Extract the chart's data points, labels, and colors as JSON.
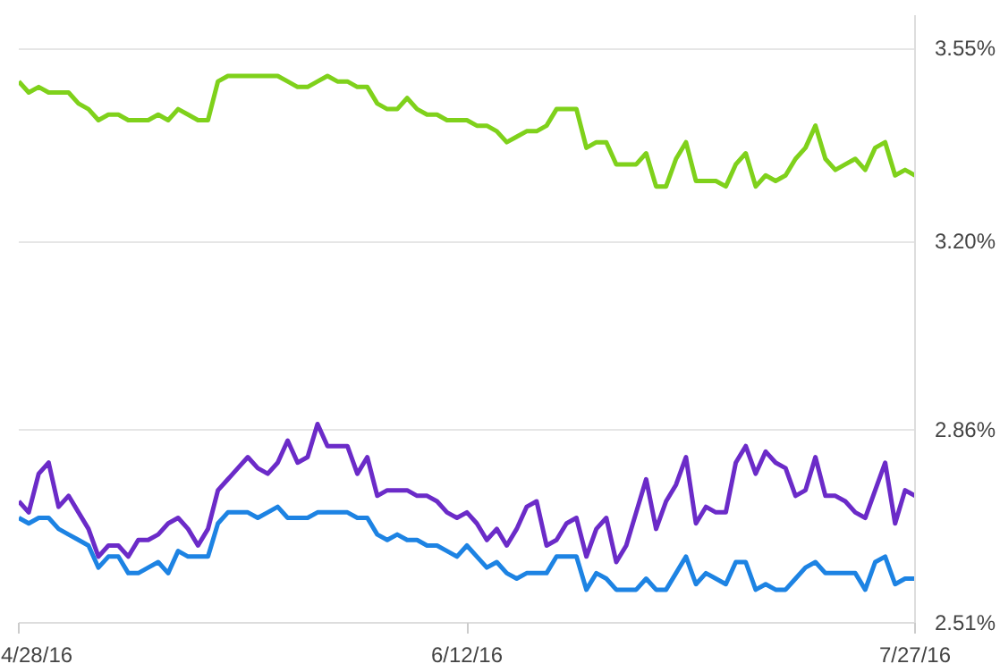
{
  "chart_data": {
    "type": "line",
    "x": [
      "2016-04-28",
      "2016-04-29",
      "2016-04-30",
      "2016-05-01",
      "2016-05-02",
      "2016-05-03",
      "2016-05-04",
      "2016-05-05",
      "2016-05-06",
      "2016-05-07",
      "2016-05-08",
      "2016-05-09",
      "2016-05-10",
      "2016-05-11",
      "2016-05-12",
      "2016-05-13",
      "2016-05-14",
      "2016-05-15",
      "2016-05-16",
      "2016-05-17",
      "2016-05-18",
      "2016-05-19",
      "2016-05-20",
      "2016-05-21",
      "2016-05-22",
      "2016-05-23",
      "2016-05-24",
      "2016-05-25",
      "2016-05-26",
      "2016-05-27",
      "2016-05-28",
      "2016-05-29",
      "2016-05-30",
      "2016-05-31",
      "2016-06-01",
      "2016-06-02",
      "2016-06-03",
      "2016-06-04",
      "2016-06-05",
      "2016-06-06",
      "2016-06-07",
      "2016-06-08",
      "2016-06-09",
      "2016-06-10",
      "2016-06-11",
      "2016-06-12",
      "2016-06-13",
      "2016-06-14",
      "2016-06-15",
      "2016-06-16",
      "2016-06-17",
      "2016-06-18",
      "2016-06-19",
      "2016-06-20",
      "2016-06-21",
      "2016-06-22",
      "2016-06-23",
      "2016-06-24",
      "2016-06-25",
      "2016-06-26",
      "2016-06-27",
      "2016-06-28",
      "2016-06-29",
      "2016-06-30",
      "2016-07-01",
      "2016-07-02",
      "2016-07-03",
      "2016-07-04",
      "2016-07-05",
      "2016-07-06",
      "2016-07-07",
      "2016-07-08",
      "2016-07-09",
      "2016-07-10",
      "2016-07-11",
      "2016-07-12",
      "2016-07-13",
      "2016-07-14",
      "2016-07-15",
      "2016-07-16",
      "2016-07-17",
      "2016-07-18",
      "2016-07-19",
      "2016-07-20",
      "2016-07-21",
      "2016-07-22",
      "2016-07-23",
      "2016-07-24",
      "2016-07-25",
      "2016-07-26",
      "2016-07-27"
    ],
    "series": [
      {
        "color": "#7fd11b",
        "values": [
          3.49,
          3.47,
          3.48,
          3.47,
          3.47,
          3.47,
          3.45,
          3.44,
          3.42,
          3.43,
          3.43,
          3.42,
          3.42,
          3.42,
          3.43,
          3.42,
          3.44,
          3.43,
          3.42,
          3.42,
          3.49,
          3.5,
          3.5,
          3.5,
          3.5,
          3.5,
          3.5,
          3.49,
          3.48,
          3.48,
          3.49,
          3.5,
          3.49,
          3.49,
          3.48,
          3.48,
          3.45,
          3.44,
          3.44,
          3.46,
          3.44,
          3.43,
          3.43,
          3.42,
          3.42,
          3.42,
          3.41,
          3.41,
          3.4,
          3.38,
          3.39,
          3.4,
          3.4,
          3.41,
          3.44,
          3.44,
          3.44,
          3.37,
          3.38,
          3.38,
          3.34,
          3.34,
          3.34,
          3.36,
          3.3,
          3.3,
          3.35,
          3.38,
          3.31,
          3.31,
          3.31,
          3.3,
          3.34,
          3.36,
          3.3,
          3.32,
          3.31,
          3.32,
          3.35,
          3.37,
          3.41,
          3.35,
          3.33,
          3.34,
          3.35,
          3.33,
          3.37,
          3.38,
          3.32,
          3.33,
          3.32
        ]
      },
      {
        "color": "#6b2bc8",
        "values": [
          2.73,
          2.71,
          2.78,
          2.8,
          2.72,
          2.74,
          2.71,
          2.68,
          2.63,
          2.65,
          2.65,
          2.63,
          2.66,
          2.66,
          2.67,
          2.69,
          2.7,
          2.68,
          2.65,
          2.68,
          2.75,
          2.77,
          2.79,
          2.81,
          2.79,
          2.78,
          2.8,
          2.84,
          2.8,
          2.81,
          2.87,
          2.83,
          2.83,
          2.83,
          2.78,
          2.81,
          2.74,
          2.75,
          2.75,
          2.75,
          2.74,
          2.74,
          2.73,
          2.71,
          2.7,
          2.71,
          2.69,
          2.66,
          2.68,
          2.65,
          2.68,
          2.72,
          2.73,
          2.65,
          2.66,
          2.69,
          2.7,
          2.63,
          2.68,
          2.7,
          2.62,
          2.65,
          2.71,
          2.77,
          2.68,
          2.73,
          2.76,
          2.81,
          2.69,
          2.72,
          2.71,
          2.71,
          2.8,
          2.83,
          2.78,
          2.82,
          2.8,
          2.79,
          2.74,
          2.75,
          2.81,
          2.74,
          2.74,
          2.73,
          2.71,
          2.7,
          2.75,
          2.8,
          2.69,
          2.75,
          2.74
        ]
      },
      {
        "color": "#1d83e3",
        "values": [
          2.7,
          2.69,
          2.7,
          2.7,
          2.68,
          2.67,
          2.66,
          2.65,
          2.61,
          2.63,
          2.63,
          2.6,
          2.6,
          2.61,
          2.62,
          2.6,
          2.64,
          2.63,
          2.63,
          2.63,
          2.69,
          2.71,
          2.71,
          2.71,
          2.7,
          2.71,
          2.72,
          2.7,
          2.7,
          2.7,
          2.71,
          2.71,
          2.71,
          2.71,
          2.7,
          2.7,
          2.67,
          2.66,
          2.67,
          2.66,
          2.66,
          2.65,
          2.65,
          2.64,
          2.63,
          2.65,
          2.63,
          2.61,
          2.62,
          2.6,
          2.59,
          2.6,
          2.6,
          2.6,
          2.63,
          2.63,
          2.63,
          2.57,
          2.6,
          2.59,
          2.57,
          2.57,
          2.57,
          2.59,
          2.57,
          2.57,
          2.6,
          2.63,
          2.58,
          2.6,
          2.59,
          2.58,
          2.62,
          2.62,
          2.57,
          2.58,
          2.57,
          2.57,
          2.59,
          2.61,
          2.62,
          2.6,
          2.6,
          2.6,
          2.6,
          2.57,
          2.62,
          2.63,
          2.58,
          2.59,
          2.59
        ]
      }
    ],
    "xlim": [
      "2016-04-28",
      "2016-07-27"
    ],
    "xticks": [
      {
        "value": "2016-04-28",
        "label": "4/28/16"
      },
      {
        "value": "2016-06-12",
        "label": "6/12/16"
      },
      {
        "value": "2016-07-27",
        "label": "7/27/16"
      }
    ],
    "ylim": [
      2.51,
      3.61
    ],
    "yticks": [
      {
        "value": 2.51,
        "label": "2.51%"
      },
      {
        "value": 2.86,
        "label": "2.86%"
      },
      {
        "value": 3.2,
        "label": "3.20%"
      },
      {
        "value": 3.55,
        "label": "3.55%"
      }
    ],
    "grid": "y",
    "marker": "none",
    "line_style": "solid"
  }
}
